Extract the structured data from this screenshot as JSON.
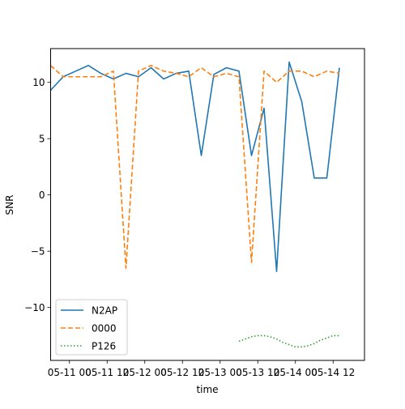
{
  "chart_data": {
    "type": "line",
    "xlabel": "time",
    "ylabel": "SNR",
    "xlim": [
      0,
      25
    ],
    "ylim": [
      -14.7,
      13.0
    ],
    "x_ticks": [
      {
        "pos": 1.5,
        "label": "05-11 00"
      },
      {
        "pos": 4.5,
        "label": "05-11 12"
      },
      {
        "pos": 7.5,
        "label": "05-12 00"
      },
      {
        "pos": 10.5,
        "label": "05-12 12"
      },
      {
        "pos": 13.5,
        "label": "05-13 00"
      },
      {
        "pos": 16.5,
        "label": "05-13 12"
      },
      {
        "pos": 19.5,
        "label": "05-14 00"
      },
      {
        "pos": 22.5,
        "label": "05-14 12"
      }
    ],
    "y_ticks": [
      {
        "value": 10,
        "label": "10"
      },
      {
        "value": 5,
        "label": "5"
      },
      {
        "value": 0,
        "label": "0"
      },
      {
        "value": -5,
        "label": "−5"
      },
      {
        "value": -10,
        "label": "−10"
      }
    ],
    "grid": false,
    "legend_position": "lower-left",
    "series": [
      {
        "name": "N2AP",
        "color": "#1f77b4",
        "style": "solid",
        "x": [
          0,
          1,
          2,
          3,
          4,
          5,
          6,
          7,
          8,
          9,
          10,
          11,
          12,
          13,
          14,
          15,
          16,
          17,
          18,
          19,
          20,
          21,
          22,
          23
        ],
        "y": [
          9.3,
          10.5,
          11.0,
          11.5,
          10.8,
          10.3,
          10.8,
          10.5,
          11.3,
          10.3,
          10.8,
          11.0,
          3.5,
          10.7,
          11.3,
          11.0,
          3.5,
          7.7,
          -6.8,
          11.8,
          8.3,
          1.5,
          1.5,
          11.3
        ]
      },
      {
        "name": "0000",
        "color": "#ff7f0e",
        "style": "dashed",
        "x": [
          0,
          1,
          2,
          3,
          4,
          5,
          6,
          7,
          8,
          9,
          10,
          11,
          12,
          13,
          14,
          15,
          16,
          17,
          18,
          19,
          20,
          21,
          22,
          23
        ],
        "y": [
          11.5,
          10.5,
          10.5,
          10.5,
          10.5,
          11.0,
          -6.5,
          11.0,
          11.5,
          11.0,
          10.8,
          10.5,
          11.3,
          10.5,
          10.8,
          10.5,
          -6.0,
          11.0,
          10.0,
          11.0,
          11.0,
          10.5,
          11.0,
          10.8
        ]
      },
      {
        "name": "P126",
        "color": "#2ca02c",
        "style": "dotted",
        "x": [
          15,
          15.5,
          16,
          16.5,
          17,
          17.5,
          18,
          18.5,
          19,
          19.5,
          20,
          20.5,
          21,
          21.5,
          22,
          22.5,
          23
        ],
        "y": [
          -13.0,
          -12.8,
          -12.6,
          -12.5,
          -12.5,
          -12.6,
          -12.8,
          -13.1,
          -13.3,
          -13.5,
          -13.5,
          -13.4,
          -13.2,
          -12.9,
          -12.7,
          -12.5,
          -12.5
        ]
      }
    ]
  }
}
